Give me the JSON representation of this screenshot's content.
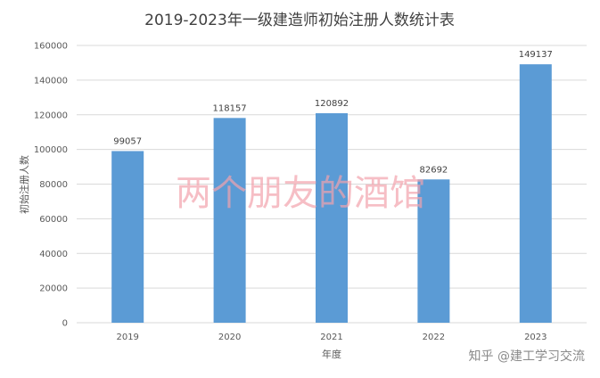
{
  "chart_data": {
    "type": "bar",
    "title": "2019-2023年一级建造师初始注册人数统计表",
    "xlabel": "年度",
    "ylabel": "初始注册人数",
    "categories": [
      "2019",
      "2020",
      "2021",
      "2022",
      "2023"
    ],
    "values": [
      99057,
      118157,
      120892,
      82692,
      149137
    ],
    "data_labels": [
      "99057",
      "118157",
      "120892",
      "82692",
      "149137"
    ],
    "ylim": [
      0,
      160000
    ],
    "y_ticks": [
      0,
      20000,
      40000,
      60000,
      80000,
      100000,
      120000,
      140000,
      160000
    ],
    "y_tick_labels": [
      "0",
      "20000",
      "40000",
      "60000",
      "80000",
      "100000",
      "120000",
      "140000",
      "160000"
    ],
    "grid": true,
    "legend": "none",
    "bar_color": "#5b9bd5",
    "grid_color": "#d9d9d9"
  },
  "overlay": {
    "watermark": "两个朋友的酒馆",
    "credit": "知乎 @建工学习交流"
  }
}
